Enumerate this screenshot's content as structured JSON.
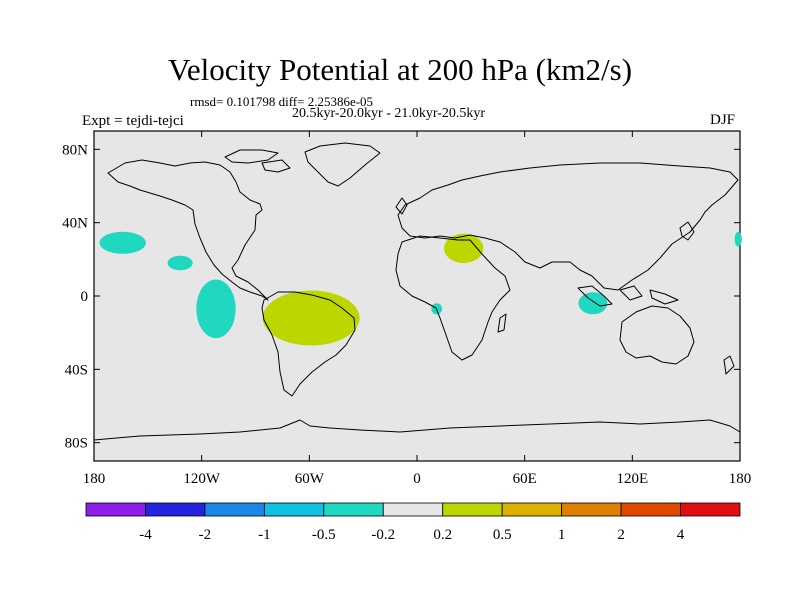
{
  "title": "Velocity Potential at 200 hPa (km2/s)",
  "stats": "rmsd= 0.101798 diff= 2.25386e-05",
  "period": "20.5kyr-20.0kyr - 21.0kyr-20.5kyr",
  "experiment": "Expt = tejdi-tejci",
  "season": "DJF",
  "map": {
    "projection": "cylindrical-equidistant",
    "lon_range": [
      -180,
      180
    ],
    "lat_range": [
      -90,
      90
    ],
    "background_color": "#e6e6e6",
    "lat_ticks": [
      {
        "value": 80,
        "label": "80N"
      },
      {
        "value": 40,
        "label": "40N"
      },
      {
        "value": 0,
        "label": "0"
      },
      {
        "value": -40,
        "label": "40S"
      },
      {
        "value": -80,
        "label": "80S"
      }
    ],
    "lon_ticks": [
      {
        "value": -180,
        "label": "180"
      },
      {
        "value": -120,
        "label": "120W"
      },
      {
        "value": -60,
        "label": "60W"
      },
      {
        "value": 0,
        "label": "0"
      },
      {
        "value": 60,
        "label": "60E"
      },
      {
        "value": 120,
        "label": "120E"
      },
      {
        "value": 180,
        "label": "180"
      }
    ],
    "anomalies": [
      {
        "name": "north-pacific-negative",
        "class": "-0.5 to -0.2",
        "color": "#20d8c0",
        "lon": -164,
        "lat": 29,
        "lon_radius": 13,
        "lat_radius": 6
      },
      {
        "name": "east-pacific-negative",
        "class": "-0.5 to -0.2",
        "color": "#20d8c0",
        "lon": -132,
        "lat": 18,
        "lon_radius": 7,
        "lat_radius": 4
      },
      {
        "name": "south-pacific-negative",
        "class": "-0.5 to -0.2",
        "color": "#20d8c0",
        "lon": -112,
        "lat": -7,
        "lon_radius": 11,
        "lat_radius": 16
      },
      {
        "name": "south-america-positive",
        "class": "0.2 to 0.5",
        "color": "#bcd600",
        "lon": -59,
        "lat": -12,
        "lon_radius": 27,
        "lat_radius": 15
      },
      {
        "name": "north-africa-positive",
        "class": "0.2 to 0.5",
        "color": "#bcd600",
        "lon": 26,
        "lat": 26,
        "lon_radius": 11,
        "lat_radius": 8
      },
      {
        "name": "west-africa-negative",
        "class": "-0.5 to -0.2",
        "color": "#20d8c0",
        "lon": 11,
        "lat": -7,
        "lon_radius": 3,
        "lat_radius": 3
      },
      {
        "name": "indian-ocean-negative",
        "class": "-0.5 to -0.2",
        "color": "#20d8c0",
        "lon": 98,
        "lat": -4,
        "lon_radius": 8,
        "lat_radius": 6
      },
      {
        "name": "date-line-negative",
        "class": "-0.5 to -0.2",
        "color": "#20d8c0",
        "lon": 179,
        "lat": 31,
        "lon_radius": 2,
        "lat_radius": 4
      }
    ]
  },
  "colorbar": {
    "colors": [
      "#8c1ee8",
      "#2424e0",
      "#1a88e8",
      "#10c0e0",
      "#20d8c0",
      "#e6e6e6",
      "#bcd600",
      "#e0b000",
      "#e08000",
      "#e04800",
      "#e01010"
    ],
    "labels": [
      "-4",
      "-2",
      "-1",
      "-0.5",
      "-0.2",
      "0.2",
      "0.5",
      "1",
      "2",
      "4"
    ]
  }
}
